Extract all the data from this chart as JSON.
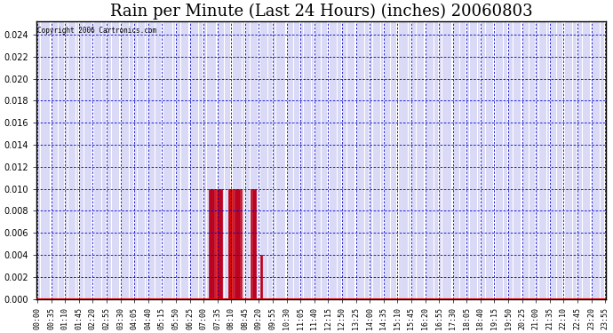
{
  "title": "Rain per Minute (Last 24 Hours) (inches) 20060803",
  "copyright": "Copyright 2006 Cartronics.com",
  "ylim": [
    0.0,
    0.0252
  ],
  "yticks": [
    0.0,
    0.002,
    0.004,
    0.006,
    0.008,
    0.01,
    0.012,
    0.014,
    0.016,
    0.018,
    0.02,
    0.022,
    0.024
  ],
  "bar_color": "#dd0000",
  "grid_color": "#0000cc",
  "background_color": "#ffffff",
  "title_fontsize": 13,
  "tick_label_step": 7,
  "rain_bars": [
    {
      "index": 87,
      "value": 0.01
    },
    {
      "index": 88,
      "value": 0.01
    },
    {
      "index": 89,
      "value": 0.01
    },
    {
      "index": 90,
      "value": 0.01
    },
    {
      "index": 91,
      "value": 0.01
    },
    {
      "index": 92,
      "value": 0.01
    },
    {
      "index": 93,
      "value": 0.01
    },
    {
      "index": 97,
      "value": 0.01
    },
    {
      "index": 98,
      "value": 0.01
    },
    {
      "index": 99,
      "value": 0.01
    },
    {
      "index": 100,
      "value": 0.01
    },
    {
      "index": 101,
      "value": 0.01
    },
    {
      "index": 102,
      "value": 0.01
    },
    {
      "index": 103,
      "value": 0.01
    },
    {
      "index": 108,
      "value": 0.01
    },
    {
      "index": 109,
      "value": 0.01
    },
    {
      "index": 110,
      "value": 0.01
    },
    {
      "index": 113,
      "value": 0.004
    }
  ]
}
